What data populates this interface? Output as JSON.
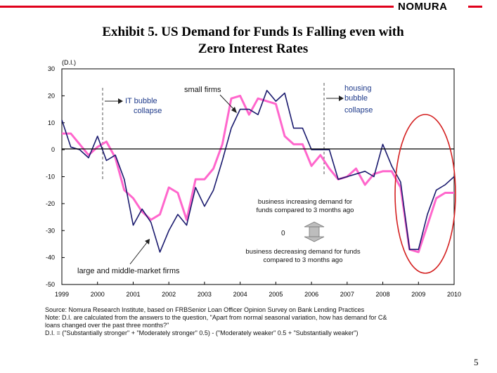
{
  "brand": "NOMURA",
  "title_line1": "Exhibit 5.  US Demand for Funds Is Falling even with",
  "title_line2": "Zero Interest Rates",
  "page_number": "5",
  "colors": {
    "brand_red": "#e0001b",
    "large_series": "#1a1a6e",
    "small_series": "#ff66cc",
    "highlight_circle": "#d42020"
  },
  "chart_data": {
    "type": "line",
    "yunit": "(D.I.)",
    "ylim": [
      -50,
      30
    ],
    "yticks": [
      30,
      20,
      10,
      0,
      -10,
      -20,
      -30,
      -40,
      -50
    ],
    "xlim": [
      1999,
      2010
    ],
    "xticks": [
      "1999",
      "2000",
      "2001",
      "2002",
      "2003",
      "2004",
      "2005",
      "2006",
      "2007",
      "2008",
      "2009",
      "2010"
    ],
    "grid": false,
    "series": [
      {
        "name": "large and middle-market firms",
        "color": "#1a1a6e",
        "x": [
          1999.0,
          1999.25,
          1999.5,
          1999.75,
          2000.0,
          2000.25,
          2000.5,
          2000.75,
          2001.0,
          2001.25,
          2001.5,
          2001.75,
          2002.0,
          2002.25,
          2002.5,
          2002.75,
          2003.0,
          2003.25,
          2003.5,
          2003.75,
          2004.0,
          2004.25,
          2004.5,
          2004.75,
          2005.0,
          2005.25,
          2005.5,
          2005.75,
          2006.0,
          2006.25,
          2006.5,
          2006.75,
          2007.0,
          2007.25,
          2007.5,
          2007.75,
          2008.0,
          2008.25,
          2008.5,
          2008.75,
          2009.0,
          2009.25,
          2009.5,
          2009.75,
          2010.0
        ],
        "y": [
          11,
          1,
          0,
          -3,
          5,
          -4,
          -2,
          -11,
          -28,
          -22,
          -27,
          -38,
          -30,
          -24,
          -28,
          -14,
          -21,
          -15,
          -4,
          8,
          15,
          15,
          13,
          22,
          18,
          21,
          8,
          8,
          0,
          0,
          0,
          -11,
          -10,
          -9,
          -8,
          -10,
          2,
          -6,
          -12,
          -37,
          -37,
          -24,
          -15,
          -13,
          -10
        ],
        "label": "large and middle-market firms"
      },
      {
        "name": "small firms",
        "color": "#ff66cc",
        "x": [
          1999.0,
          1999.25,
          1999.5,
          1999.75,
          2000.0,
          2000.25,
          2000.5,
          2000.75,
          2001.0,
          2001.25,
          2001.5,
          2001.75,
          2002.0,
          2002.25,
          2002.5,
          2002.75,
          2003.0,
          2003.25,
          2003.5,
          2003.75,
          2004.0,
          2004.25,
          2004.5,
          2004.75,
          2005.0,
          2005.25,
          2005.5,
          2005.75,
          2006.0,
          2006.25,
          2006.5,
          2006.75,
          2007.0,
          2007.25,
          2007.5,
          2007.75,
          2008.0,
          2008.25,
          2008.5,
          2008.75,
          2009.0,
          2009.25,
          2009.5,
          2009.75,
          2010.0
        ],
        "y": [
          6,
          6,
          2,
          -2,
          1,
          3,
          -3,
          -15,
          -18,
          -23,
          -26,
          -24,
          -14,
          -16,
          -26,
          -11,
          -11,
          -7,
          2,
          19,
          20,
          13,
          19,
          18,
          17,
          5,
          2,
          2,
          -6,
          -2,
          -7,
          -11,
          -10,
          -7,
          -13,
          -9,
          -8,
          -8,
          -14,
          -37,
          -38,
          -28,
          -18,
          -16,
          -16
        ],
        "label": "small firms"
      }
    ],
    "annotations": {
      "it_bubble_line1": "IT bubble",
      "it_bubble_line2": "collapse",
      "housing_line1": "housing",
      "housing_line2": "bubble",
      "housing_line3": "collapse",
      "increase_line1": "business increasing demand for",
      "increase_line2": "funds compared to 3 months ago",
      "zero_label": "0",
      "decrease_line1": "business decreasing demand for funds",
      "decrease_line2": "compared to 3 months ago"
    }
  },
  "notes": {
    "source": "Source: Nomura Research Institute, based on FRBSenior Loan Officer Opinion Survey on Bank Lending Practices",
    "note_line1": "Note: D.I. are calculated from the answers to the question, \"Apart from normal seasonal variation, how has demand for C&",
    "note_line2": "loans changed over the past three months?\"",
    "di_formula": "D.I. = (\"Substantially stronger\" + \"Moderately stronger\" 0.5) - (\"Moderately weaker\"    0.5 + \"Substantially weaker\")"
  }
}
